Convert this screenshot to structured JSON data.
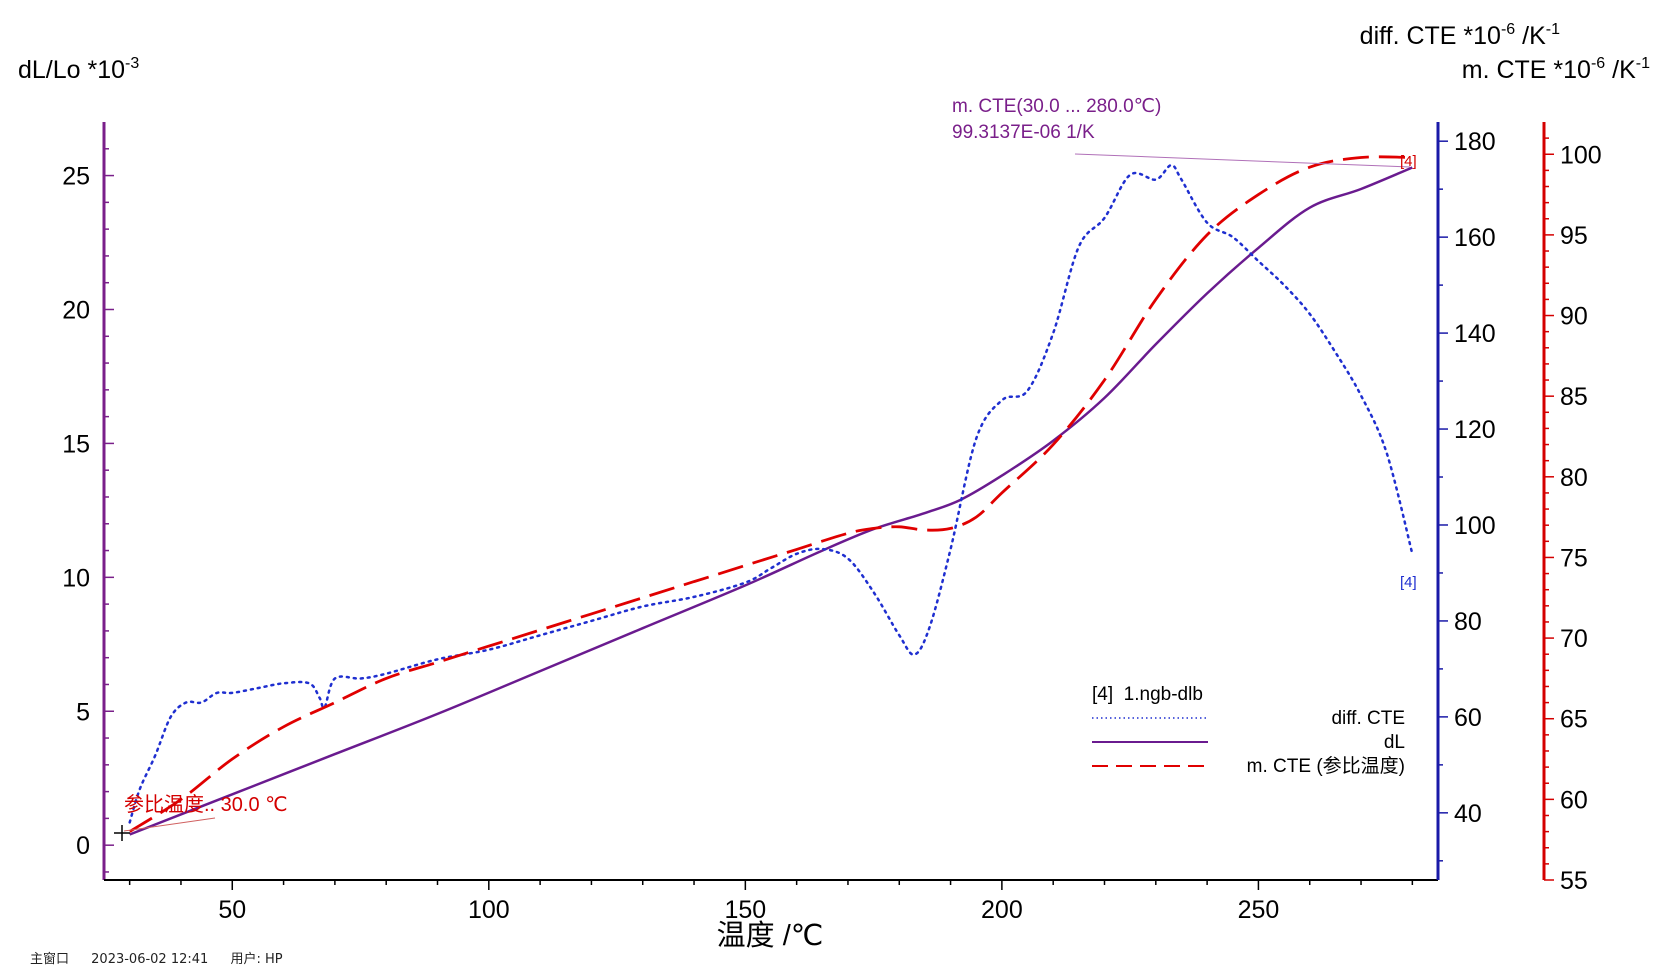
{
  "chart_data": {
    "type": "line",
    "left_axis_label": "dL/Lo *10",
    "left_axis_label_exp": "-3",
    "right_axis_label_1": "diff. CTE *10",
    "right_axis_label_1_exp": "-6",
    "right_axis_label_1_unit": " /K",
    "right_axis_label_1_unit_exp": "-1",
    "right_axis_label_2": "m. CTE *10",
    "right_axis_label_2_exp": "-6",
    "right_axis_label_2_unit": " /K",
    "right_axis_label_2_unit_exp": "-1",
    "xlabel": "温度 /℃",
    "xlim": [
      25,
      285
    ],
    "x_ticks": [
      50,
      100,
      150,
      200,
      250
    ],
    "y_left_lim": [
      -1.3,
      27
    ],
    "y_left_ticks": [
      0,
      5,
      10,
      15,
      20,
      25
    ],
    "y_blue_lim": [
      26,
      184
    ],
    "y_blue_ticks": [
      40,
      60,
      80,
      100,
      120,
      140,
      160,
      180
    ],
    "y_red_lim": [
      55,
      102
    ],
    "y_red_ticks": [
      55,
      60,
      65,
      70,
      75,
      80,
      85,
      90,
      95,
      100
    ],
    "colors": {
      "left_axis": "#7a1f8a",
      "blue_axis": "#1a1aa8",
      "red_axis": "#d40000",
      "dl": "#6a1b8f",
      "diff_cte": "#1f2fd0",
      "m_cte": "#e00000"
    },
    "annotation_mcte": {
      "line1": "m. CTE(30.0 ... 280.0℃)",
      "line2": "99.3137E-06 1/K"
    },
    "annotation_ref": "参比温度.. 30.0 ℃",
    "end_marker": "[4]",
    "legend": {
      "title": "[4]  1.ngb-dlb",
      "items": [
        "diff. CTE",
        "dL",
        "m. CTE (参比温度)"
      ]
    },
    "series": [
      {
        "name": "dL",
        "axis": "left",
        "x": [
          30,
          50,
          70,
          90,
          110,
          130,
          150,
          165,
          175,
          185,
          192,
          200,
          210,
          220,
          230,
          240,
          250,
          260,
          270,
          280
        ],
        "y": [
          0.4,
          1.9,
          3.4,
          4.9,
          6.5,
          8.1,
          9.7,
          11.0,
          11.8,
          12.4,
          12.9,
          13.8,
          15.1,
          16.7,
          18.7,
          20.6,
          22.3,
          23.8,
          24.5,
          25.3
        ]
      },
      {
        "name": "diff. CTE",
        "axis": "blue",
        "x": [
          30,
          32,
          35,
          38,
          41,
          44,
          47,
          50,
          55,
          60,
          65,
          67,
          68,
          70,
          75,
          80,
          90,
          100,
          110,
          120,
          130,
          140,
          150,
          155,
          160,
          165,
          170,
          175,
          180,
          183,
          186,
          190,
          195,
          200,
          205,
          210,
          215,
          220,
          225,
          230,
          233,
          235,
          240,
          245,
          250,
          255,
          260,
          265,
          270,
          275,
          280
        ],
        "y": [
          38,
          45,
          52,
          60,
          63,
          63,
          65,
          65,
          66,
          67,
          67,
          64,
          62,
          68,
          68,
          69,
          72,
          74,
          77,
          80,
          83,
          85,
          88,
          91,
          94,
          95,
          93,
          86,
          77,
          73,
          79,
          95,
          118,
          126,
          128,
          140,
          158,
          164,
          173,
          172,
          175,
          172,
          163,
          160,
          155,
          150,
          144,
          136,
          127,
          115,
          94
        ]
      },
      {
        "name": "m. CTE (参比温度)",
        "axis": "red",
        "x": [
          30,
          40,
          50,
          60,
          70,
          80,
          90,
          100,
          110,
          120,
          130,
          140,
          150,
          160,
          170,
          175,
          180,
          185,
          190,
          195,
          200,
          210,
          220,
          230,
          240,
          250,
          260,
          270,
          280
        ],
        "y": [
          58,
          60,
          62.5,
          64.5,
          66,
          67.5,
          68.5,
          69.5,
          70.5,
          71.5,
          72.5,
          73.5,
          74.5,
          75.5,
          76.5,
          76.8,
          76.9,
          76.7,
          76.8,
          77.5,
          79.0,
          82.0,
          86.0,
          91.0,
          95.0,
          97.5,
          99.2,
          99.8,
          99.8
        ]
      }
    ]
  },
  "footer": {
    "window": "主窗口",
    "timestamp": "2023-06-02 12:41",
    "user": "用户: HP"
  }
}
